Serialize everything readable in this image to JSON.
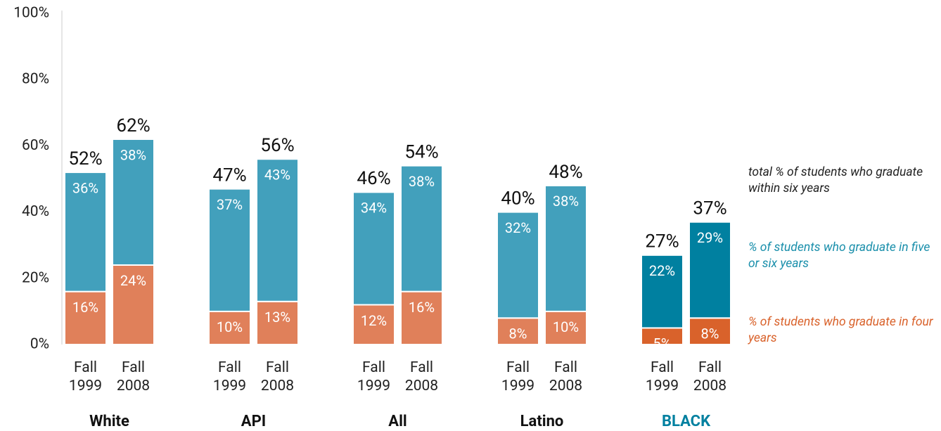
{
  "chart_data": {
    "type": "stacked_bar",
    "categories": [
      "Fall 1999",
      "Fall 2008",
      "Fall 1999",
      "Fall 2008",
      "Fall 1999",
      "Fall 2008",
      "Fall 1999",
      "Fall 2008",
      "Fall 1999",
      "Fall 2008"
    ],
    "groups": [
      "White",
      "API",
      "All",
      "Latino",
      "BLACK"
    ],
    "group_colors": [
      "#111111",
      "#111111",
      "#111111",
      "#111111",
      "#0080a0"
    ],
    "series": [
      {
        "name": "% of students who graduate in four years",
        "color": "#e0805a",
        "colors": [
          "#e0805a",
          "#e0805a",
          "#e0805a",
          "#e0805a",
          "#e0805a",
          "#e0805a",
          "#e0805a",
          "#e0805a",
          "#d9622b",
          "#d9622b"
        ],
        "values": [
          16,
          24,
          10,
          13,
          12,
          16,
          8,
          10,
          5,
          8
        ],
        "value_labels": [
          "16%",
          "24%",
          "10%",
          "13%",
          "12%",
          "16%",
          "8%",
          "10%",
          "5%",
          "8%"
        ]
      },
      {
        "name": "% of students who graduate in five or six years",
        "color": "#42a0bc",
        "colors": [
          "#42a0bc",
          "#42a0bc",
          "#42a0bc",
          "#42a0bc",
          "#42a0bc",
          "#42a0bc",
          "#42a0bc",
          "#42a0bc",
          "#0080a0",
          "#0080a0"
        ],
        "values": [
          36,
          38,
          37,
          43,
          34,
          38,
          32,
          38,
          22,
          29
        ],
        "value_labels": [
          "36%",
          "38%",
          "37%",
          "43%",
          "34%",
          "38%",
          "32%",
          "38%",
          "22%",
          "29%"
        ]
      }
    ],
    "totals": {
      "name": "total % of students who graduate within six years",
      "values": [
        52,
        62,
        47,
        56,
        46,
        54,
        40,
        48,
        27,
        37
      ],
      "value_labels": [
        "52%",
        "62%",
        "47%",
        "56%",
        "46%",
        "54%",
        "40%",
        "48%",
        "27%",
        "37%"
      ]
    },
    "ylim": [
      0,
      100
    ],
    "yticks": [
      {
        "value": 0,
        "label": "0%"
      },
      {
        "value": 20,
        "label": "20%"
      },
      {
        "value": 40,
        "label": "40%"
      },
      {
        "value": 60,
        "label": "60%"
      },
      {
        "value": 80,
        "label": "80%"
      },
      {
        "value": 100,
        "label": "100%"
      }
    ],
    "legend_colors": [
      "#d9622b",
      "#1a8fab",
      "#222222"
    ]
  }
}
